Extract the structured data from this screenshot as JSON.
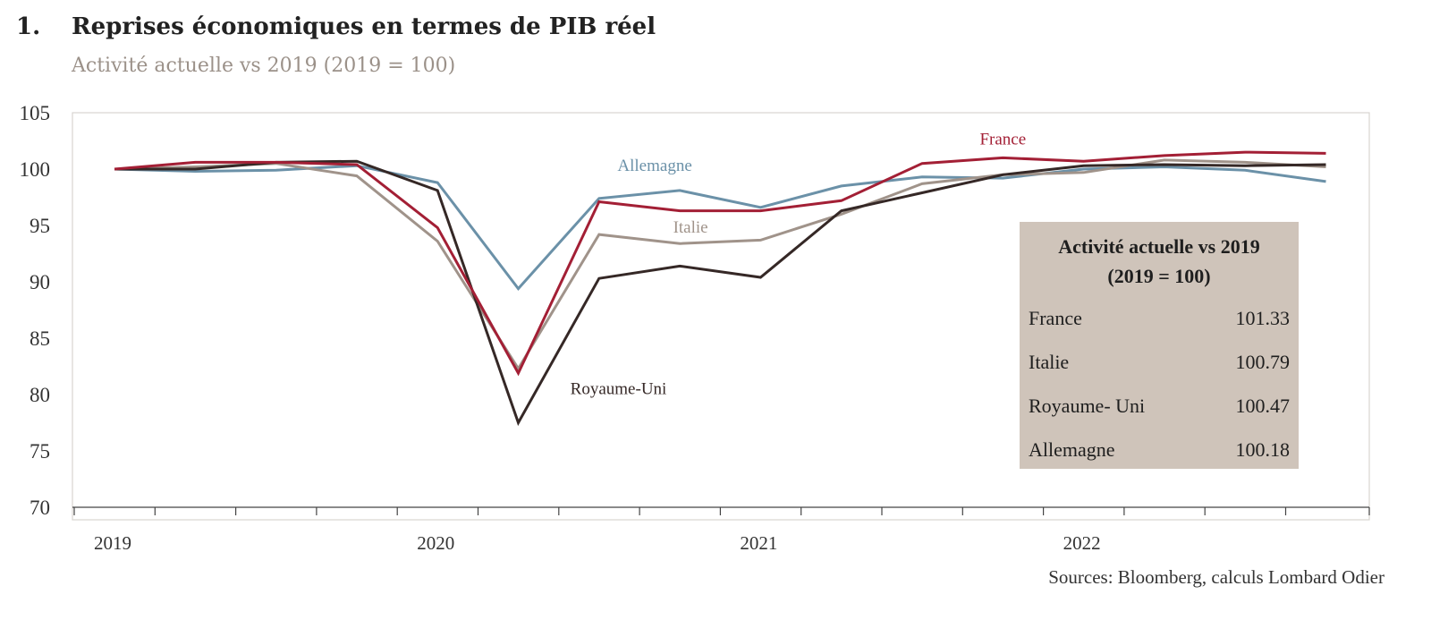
{
  "chart_number": "1.",
  "chart_data": {
    "type": "line",
    "title": "Reprises économiques en termes de PIB réel",
    "subtitle": "Activité actuelle vs 2019 (2019 = 100)",
    "ylim": [
      70,
      105
    ],
    "yticks": [
      70,
      75,
      80,
      85,
      90,
      95,
      100,
      105
    ],
    "x_labels": [
      {
        "label": "2019",
        "x": 0
      },
      {
        "label": "2020",
        "x": 4
      },
      {
        "label": "2021",
        "x": 8
      },
      {
        "label": "2022",
        "x": 12
      }
    ],
    "x_range": [
      0,
      15.6
    ],
    "series": [
      {
        "name": "Allemagne",
        "color": "#6b91a8",
        "values": [
          100.0,
          99.8,
          99.9,
          100.3,
          98.8,
          89.4,
          97.4,
          98.1,
          96.6,
          98.5,
          99.3,
          99.2,
          100.0,
          100.2,
          99.9,
          98.9
        ]
      },
      {
        "name": "Italie",
        "color": "#a0938a",
        "values": [
          100.0,
          100.2,
          100.5,
          99.4,
          93.6,
          82.3,
          94.2,
          93.4,
          93.7,
          96.0,
          98.7,
          99.5,
          99.7,
          100.8,
          100.6,
          100.2
        ]
      },
      {
        "name": "Royaume-Uni",
        "color": "#352826",
        "values": [
          100.0,
          100.0,
          100.6,
          100.7,
          98.1,
          77.5,
          90.3,
          91.4,
          90.4,
          96.3,
          97.9,
          99.5,
          100.3,
          100.4,
          100.3,
          100.4
        ]
      },
      {
        "name": "France",
        "color": "#a31f35",
        "values": [
          100.0,
          100.6,
          100.6,
          100.4,
          94.8,
          81.9,
          97.1,
          96.3,
          96.3,
          97.2,
          100.5,
          101.0,
          100.7,
          101.2,
          101.5,
          101.4
        ]
      }
    ],
    "series_label_positions": [
      "above-trough",
      "above-trough",
      "below-trough",
      "above-peak"
    ],
    "grid": false
  },
  "summary_table": {
    "title_line1": "Activité actuelle vs 2019",
    "title_line2": "(2019 = 100)",
    "background": "#cfc4ba",
    "rows": [
      {
        "name": "France",
        "value": "101.33"
      },
      {
        "name": "Italie",
        "value": "100.79"
      },
      {
        "name": "Royaume- Uni",
        "value": "100.47"
      },
      {
        "name": "Allemagne",
        "value": "100.18"
      }
    ]
  },
  "source": "Sources: Bloomberg, calculs Lombard Odier"
}
